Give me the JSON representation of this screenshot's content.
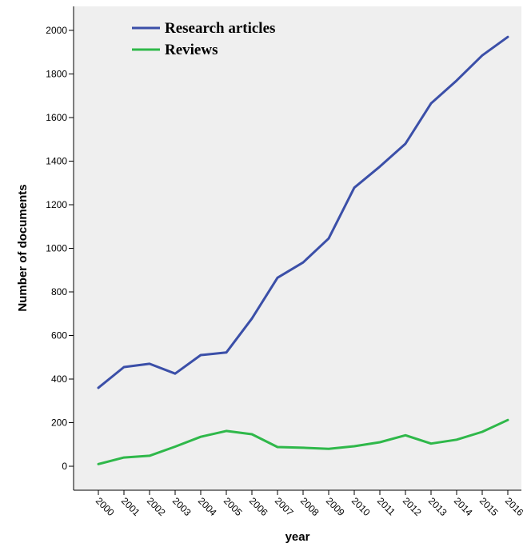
{
  "colors": {
    "plot_background": "#efefef",
    "research_articles": "#3b4fa8",
    "reviews": "#2fb84a",
    "axis": "#000000"
  },
  "chart_data": {
    "type": "line",
    "xlabel": "year",
    "ylabel": "Number of documents",
    "ylim": [
      -110,
      2110
    ],
    "yticks": [
      0,
      200,
      400,
      600,
      800,
      1000,
      1200,
      1400,
      1600,
      1800,
      2000
    ],
    "grid": false,
    "legend_position": "top-left",
    "categories": [
      "2000",
      "2001",
      "2002",
      "2003",
      "2004",
      "2005",
      "2006",
      "2007",
      "2008",
      "2009",
      "2010",
      "2011",
      "2012",
      "2013",
      "2014",
      "2015",
      "2016"
    ],
    "series": [
      {
        "name": "Research articles",
        "color": "#3b4fa8",
        "values": [
          360,
          455,
          470,
          425,
          510,
          522,
          678,
          865,
          935,
          1045,
          1278,
          1375,
          1480,
          1665,
          1770,
          1885,
          1970
        ]
      },
      {
        "name": "Reviews",
        "color": "#2fb84a",
        "values": [
          10,
          40,
          48,
          90,
          135,
          162,
          147,
          88,
          85,
          80,
          92,
          110,
          142,
          104,
          122,
          158,
          212
        ]
      }
    ]
  }
}
